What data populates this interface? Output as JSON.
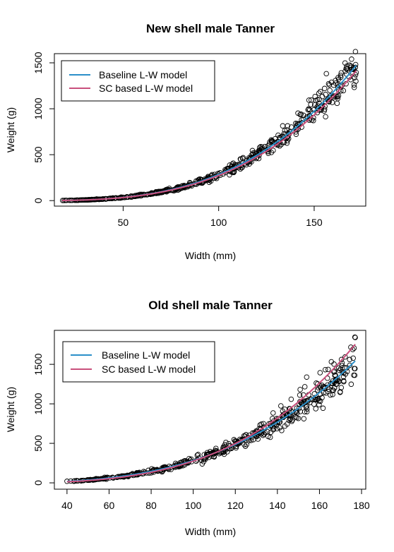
{
  "chart_data": [
    {
      "type": "scatter",
      "title": "New shell male Tanner",
      "xlabel": "Width (mm)",
      "ylabel": "Weight (g)",
      "xlim": [
        14,
        177
      ],
      "ylim": [
        -60,
        1600
      ],
      "x_ticks": [
        50,
        100,
        150
      ],
      "y_ticks": [
        0,
        500,
        1000,
        1500
      ],
      "grid": false,
      "legend_position": "top-left",
      "series": [
        {
          "name": "Baseline L-W model",
          "kind": "line",
          "color": "#2b8fc9",
          "coef": 0.000248,
          "power": 3.03,
          "x_range": [
            18,
            172
          ]
        },
        {
          "name": "SC based L-W model",
          "kind": "line",
          "color": "#c94f7c",
          "coef": 0.000238,
          "power": 3.03,
          "x_range": [
            18,
            172
          ]
        }
      ],
      "points": {
        "coef": 0.000248,
        "power": 3.03,
        "x_range": [
          18,
          172
        ],
        "count": 520,
        "spread": 0.08,
        "seed": 11
      }
    },
    {
      "type": "scatter",
      "title": "Old shell male Tanner",
      "xlabel": "Width (mm)",
      "ylabel": "Weight (g)",
      "xlim": [
        34,
        182
      ],
      "ylim": [
        -80,
        1930
      ],
      "x_ticks": [
        40,
        60,
        80,
        100,
        120,
        140,
        160,
        180
      ],
      "y_ticks": [
        0,
        500,
        1000,
        1500
      ],
      "grid": false,
      "legend_position": "top-left",
      "series": [
        {
          "name": "Baseline L-W model",
          "kind": "line",
          "color": "#2b8fc9",
          "coef": 0.000325,
          "power": 2.97,
          "x_range": [
            40,
            177
          ]
        },
        {
          "name": "SC based L-W model",
          "kind": "line",
          "color": "#c94f7c",
          "coef": 9.13e-05,
          "power": 3.24,
          "x_range": [
            40,
            177
          ]
        }
      ],
      "points": {
        "coef": 0.000325,
        "power": 2.97,
        "x_range": [
          40,
          177
        ],
        "count": 480,
        "spread": 0.08,
        "seed": 23
      },
      "extra_points": [
        {
          "x": 40,
          "y": 20
        },
        {
          "x": 59,
          "y": 65
        },
        {
          "x": 65,
          "y": 80
        },
        {
          "x": 177,
          "y": 1840
        }
      ]
    }
  ]
}
